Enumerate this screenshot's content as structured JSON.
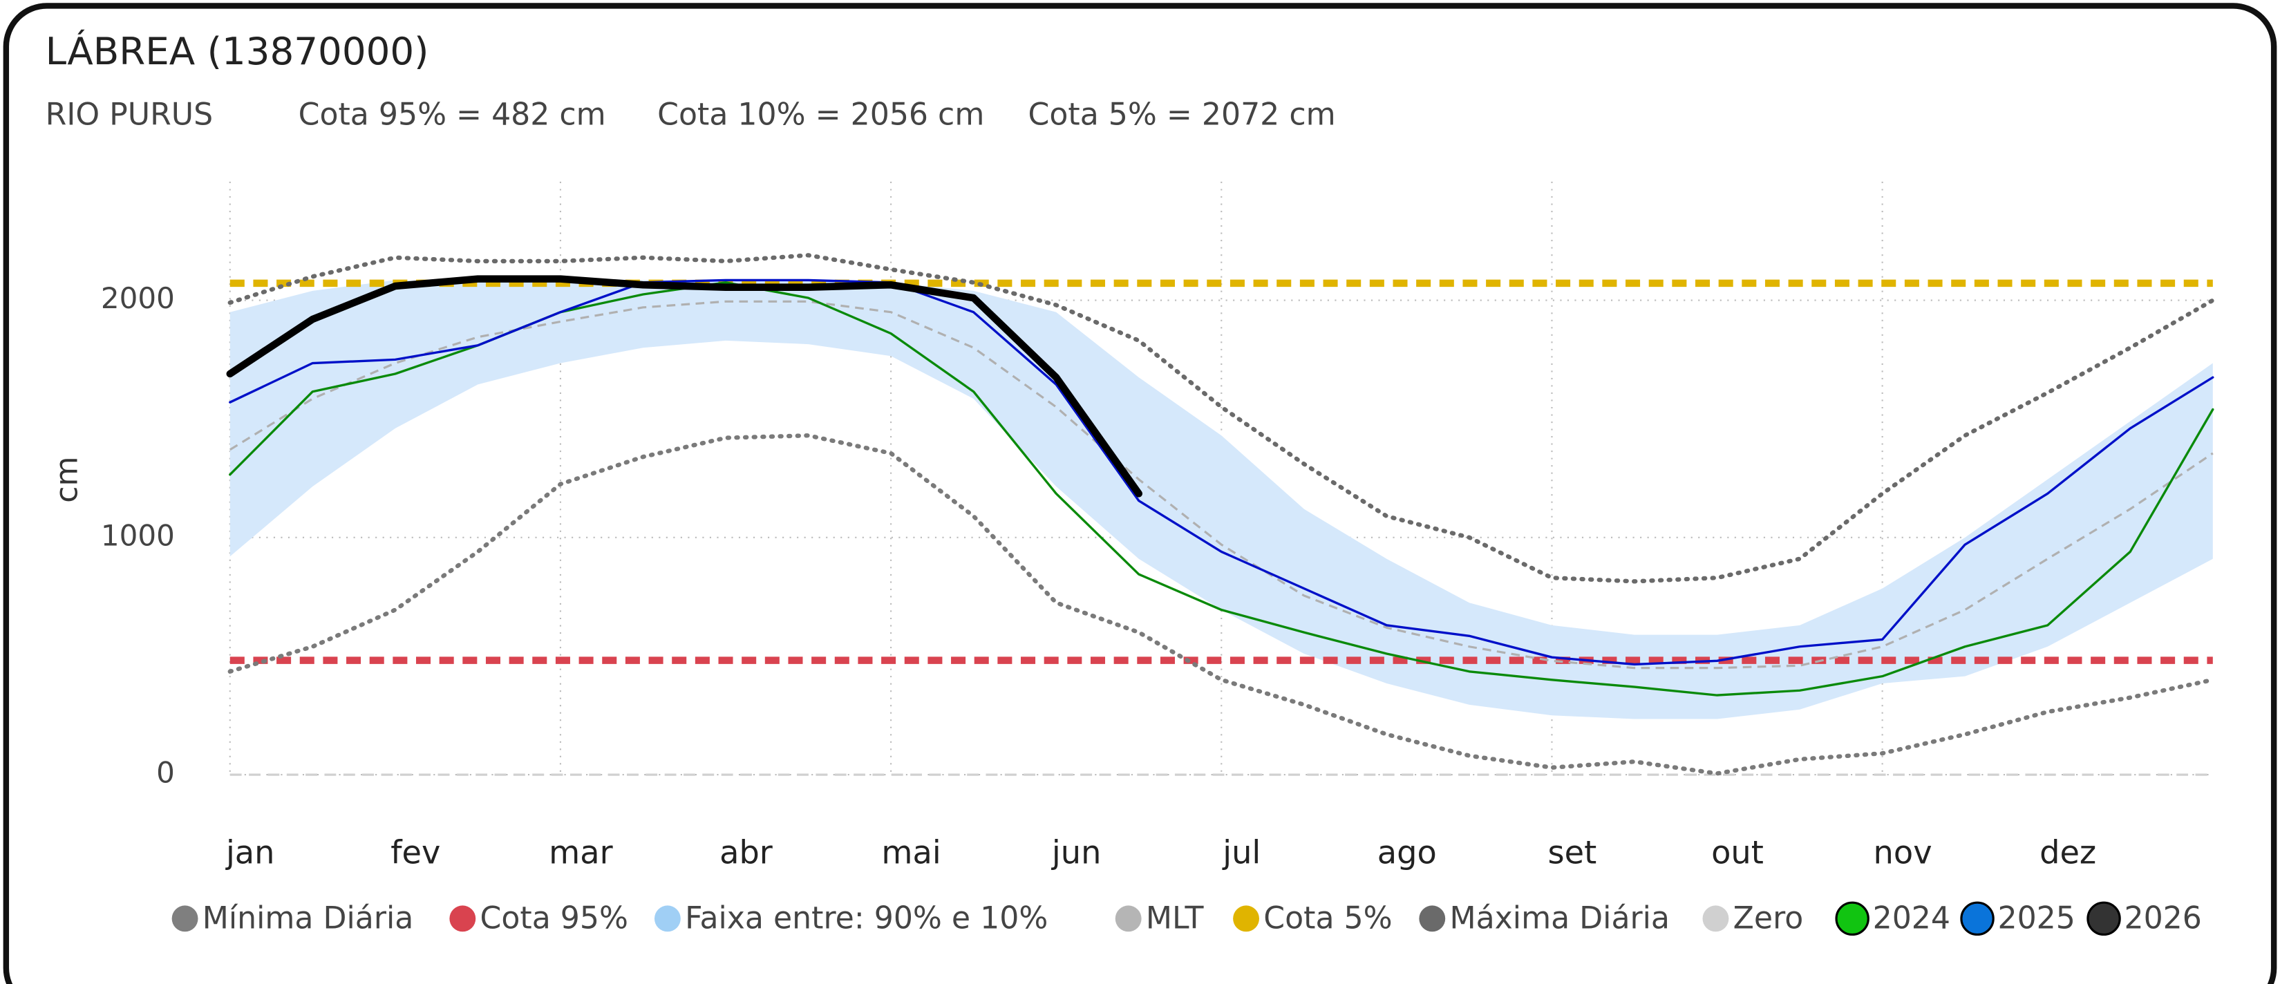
{
  "chart_data": {
    "type": "line",
    "title": "LÁBREA (13870000)",
    "subtitle": [
      "RIO PURUS",
      "Cota 95% = 482 cm",
      "Cota 10% = 2056 cm",
      "Cota 5% = 2072 cm"
    ],
    "ylabel": "cm",
    "x": [
      0,
      0.5,
      1,
      1.5,
      2,
      2.5,
      3,
      3.5,
      4,
      4.5,
      5,
      5.5,
      6,
      6.5,
      7,
      7.5,
      8,
      8.5,
      9,
      9.5,
      10,
      10.5,
      11,
      11.5,
      12
    ],
    "xlim": [
      0,
      12
    ],
    "xticks": [
      {
        "value": 0,
        "label": "jan"
      },
      {
        "value": 1,
        "label": "fev"
      },
      {
        "value": 2,
        "label": "mar"
      },
      {
        "value": 3,
        "label": "abr"
      },
      {
        "value": 4,
        "label": "mai"
      },
      {
        "value": 5,
        "label": "jun"
      },
      {
        "value": 6,
        "label": "jul"
      },
      {
        "value": 7,
        "label": "ago"
      },
      {
        "value": 8,
        "label": "set"
      },
      {
        "value": 9,
        "label": "out"
      },
      {
        "value": 10,
        "label": "nov"
      },
      {
        "value": 11,
        "label": "dez"
      }
    ],
    "ylim": [
      0,
      2500
    ],
    "yticks": [
      0,
      1000,
      2000
    ],
    "grid": true,
    "band": {
      "name": "Faixa entre:     90% e 10%",
      "color": "#d5e8fb",
      "legend_color": "#a0cff5",
      "upper": [
        1950,
        2040,
        2085,
        2075,
        2085,
        2085,
        2085,
        2085,
        2075,
        2040,
        1950,
        1675,
        1430,
        1120,
        910,
        725,
        630,
        590,
        590,
        630,
        785,
        1000,
        1245,
        1490,
        1735
      ],
      "lower": [
        920,
        1215,
        1460,
        1645,
        1735,
        1800,
        1830,
        1815,
        1765,
        1585,
        1215,
        910,
        695,
        510,
        385,
        295,
        250,
        235,
        235,
        275,
        385,
        415,
        540,
        725,
        910
      ]
    },
    "hlines": [
      {
        "name": "Cota 95%",
        "value": 482,
        "color": "#d9434f",
        "legend_color": "#d9434f",
        "style": "dashed"
      },
      {
        "name": "Cota 5%",
        "value": 2072,
        "color": "#e0b400",
        "legend_color": "#e0b400",
        "style": "dashed"
      },
      {
        "name": "Zero",
        "value": 0,
        "color": "#d0d0d0",
        "legend_color": "#d0d0d0",
        "style": "dashed"
      }
    ],
    "series": [
      {
        "name": "Mínima Diária",
        "color": "#7a7a7a",
        "legend_color": "#7f7f7f",
        "style": "dotted",
        "values": [
          435,
          540,
          695,
          940,
          1225,
          1340,
          1420,
          1430,
          1355,
          1090,
          725,
          600,
          400,
          295,
          170,
          80,
          30,
          55,
          5,
          65,
          90,
          170,
          265,
          325,
          400
        ]
      },
      {
        "name": "MLT",
        "color": "#b0b0b0",
        "legend_color": "#b5b5b5",
        "style": "dashed",
        "values": [
          1370,
          1585,
          1735,
          1845,
          1910,
          1970,
          1995,
          1995,
          1950,
          1800,
          1550,
          1245,
          970,
          755,
          620,
          540,
          480,
          450,
          450,
          460,
          540,
          695,
          910,
          1120,
          1355
        ]
      },
      {
        "name": "Máxima Diária",
        "color": "#6a6a6a",
        "legend_color": "#6a6a6a",
        "style": "dotted",
        "values": [
          1990,
          2100,
          2180,
          2165,
          2165,
          2180,
          2165,
          2190,
          2130,
          2075,
          1980,
          1830,
          1550,
          1310,
          1090,
          1000,
          830,
          815,
          830,
          910,
          1185,
          1430,
          1610,
          1800,
          2000
        ]
      },
      {
        "name": "2024",
        "color": "#0a8a0a",
        "legend_color": "#11c411",
        "style": "solid",
        "values": [
          1265,
          1615,
          1690,
          1810,
          1950,
          2025,
          2075,
          2010,
          1860,
          1615,
          1185,
          845,
          695,
          600,
          510,
          435,
          400,
          370,
          335,
          355,
          415,
          540,
          630,
          940,
          1540
        ]
      },
      {
        "name": "2025",
        "color": "#0010c8",
        "legend_color": "#0a74da",
        "style": "solid",
        "values": [
          1570,
          1735,
          1750,
          1810,
          1950,
          2075,
          2085,
          2085,
          2075,
          1950,
          1645,
          1155,
          940,
          785,
          630,
          585,
          495,
          465,
          480,
          540,
          570,
          970,
          1185,
          1460,
          1675
        ]
      },
      {
        "name": "2026",
        "color": "#000000",
        "legend_color": "#333333",
        "style": "bold",
        "values": [
          1690,
          1920,
          2060,
          2090,
          2090,
          2065,
          2055,
          2055,
          2065,
          2010,
          1675,
          1185,
          null,
          null,
          null,
          null,
          null,
          null,
          null,
          null,
          null,
          null,
          null,
          null,
          null
        ]
      }
    ]
  }
}
